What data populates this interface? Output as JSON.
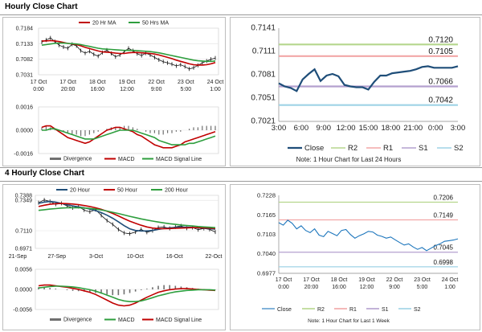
{
  "sections": {
    "hourly_title": "Hourly Close Chart",
    "four_hourly_title": "4 Hourly Close Chart"
  },
  "colors": {
    "close": "#1f4e79",
    "ma20": "#c00000",
    "ma50": "#2e9e3e",
    "macd": "#c00000",
    "signal": "#2e9e3e",
    "divergence": "#707070",
    "r2": "#b5d68d",
    "r1": "#f2a7a7",
    "s1": "#b4a0cf",
    "s2": "#9fd3e6",
    "right_close": "#1b75bc"
  },
  "chart_data": [
    {
      "id": "hourly_price",
      "type": "line",
      "legend": [
        "20 Hr MA",
        "50 Hrs MA"
      ],
      "y_ticks": [
        "0.7184",
        "0.7133",
        "0.7082",
        "0.7031"
      ],
      "ylim": [
        0.7031,
        0.7184
      ],
      "x_ticks": [
        [
          "17 Oct",
          "0:00"
        ],
        [
          "17 Oct",
          "20:00"
        ],
        [
          "18 Oct",
          "16:00"
        ],
        [
          "19 Oct",
          "12:00"
        ],
        [
          "22 Oct",
          "9:00"
        ],
        [
          "23 Oct",
          "5:00"
        ],
        [
          "24 Oct",
          "1:00"
        ]
      ],
      "series": [
        {
          "name": "Close",
          "values": [
            0.7138,
            0.7145,
            0.7152,
            0.714,
            0.7128,
            0.7122,
            0.7118,
            0.7131,
            0.7126,
            0.711,
            0.7102,
            0.7108,
            0.7098,
            0.7092,
            0.7104,
            0.7112,
            0.7101,
            0.709,
            0.7096,
            0.7106,
            0.7118,
            0.711,
            0.71,
            0.7094,
            0.7102,
            0.7096,
            0.7088,
            0.708,
            0.7074,
            0.707,
            0.7066,
            0.706,
            0.7064,
            0.7058,
            0.705,
            0.7054,
            0.7062,
            0.707,
            0.7076,
            0.7082,
            0.7086
          ]
        },
        {
          "name": "20 Hr MA",
          "values": [
            0.7142,
            0.7142,
            0.7143,
            0.7142,
            0.714,
            0.7137,
            0.7134,
            0.7132,
            0.713,
            0.7126,
            0.7121,
            0.7117,
            0.7113,
            0.7109,
            0.7106,
            0.7105,
            0.7104,
            0.7102,
            0.7101,
            0.7101,
            0.7103,
            0.7104,
            0.7104,
            0.7103,
            0.7102,
            0.7101,
            0.7099,
            0.7096,
            0.7092,
            0.7088,
            0.7084,
            0.7079,
            0.7075,
            0.7071,
            0.7067,
            0.7064,
            0.7063,
            0.7063,
            0.7064,
            0.7067,
            0.7071
          ]
        },
        {
          "name": "50 Hrs MA",
          "values": [
            0.7128,
            0.713,
            0.7132,
            0.7134,
            0.7135,
            0.7135,
            0.7134,
            0.7133,
            0.7132,
            0.713,
            0.7127,
            0.7124,
            0.7121,
            0.7118,
            0.7116,
            0.7115,
            0.7114,
            0.7113,
            0.7112,
            0.7111,
            0.7111,
            0.7111,
            0.711,
            0.7109,
            0.7108,
            0.7107,
            0.7105,
            0.7103,
            0.71,
            0.7097,
            0.7094,
            0.7091,
            0.7088,
            0.7085,
            0.7082,
            0.7079,
            0.7077,
            0.7076,
            0.7075,
            0.7075,
            0.7076
          ]
        }
      ]
    },
    {
      "id": "hourly_macd",
      "type": "line",
      "legend": [
        "Divergence",
        "MACD",
        "MACD Signal Line"
      ],
      "y_ticks": [
        "0.0016",
        "0.0000",
        "-0.0016"
      ],
      "ylim": [
        -0.0016,
        0.0016
      ],
      "series": [
        {
          "name": "Divergence",
          "values": [
            0.0002,
            0.0003,
            0.0002,
            0.0001,
            0.0,
            -0.0001,
            -0.0002,
            -0.0003,
            -0.0003,
            -0.0004,
            -0.0004,
            -0.0003,
            -0.0002,
            -0.0001,
            0.0,
            0.0001,
            0.0002,
            0.0002,
            0.0002,
            0.0003,
            0.0003,
            0.0002,
            0.0001,
            0.0,
            -0.0001,
            -0.0002,
            -0.0002,
            -0.0003,
            -0.0003,
            -0.0002,
            -0.0002,
            -0.0001,
            -0.0001,
            0.0,
            0.0001,
            0.0002,
            0.0002,
            0.0003,
            0.0003,
            0.0003,
            0.0003
          ]
        },
        {
          "name": "MACD",
          "values": [
            0.0002,
            0.0003,
            0.0003,
            0.0001,
            -0.0001,
            -0.0003,
            -0.0005,
            -0.0006,
            -0.0007,
            -0.0008,
            -0.0009,
            -0.0008,
            -0.0006,
            -0.0004,
            -0.0002,
            0.0,
            0.0001,
            0.0002,
            0.0002,
            0.0001,
            0.0,
            -0.0001,
            -0.0003,
            -0.0004,
            -0.0006,
            -0.0008,
            -0.001,
            -0.0011,
            -0.0012,
            -0.0012,
            -0.0012,
            -0.0011,
            -0.001,
            -0.0008,
            -0.0007,
            -0.0006,
            -0.0005,
            -0.0004,
            -0.0003,
            -0.0002,
            -0.0001
          ]
        },
        {
          "name": "MACD Signal Line",
          "values": [
            0.0,
            0.0,
            0.0001,
            0.0001,
            0.0,
            -0.0001,
            -0.0002,
            -0.0003,
            -0.0004,
            -0.0005,
            -0.0006,
            -0.0006,
            -0.0006,
            -0.0005,
            -0.0004,
            -0.0003,
            -0.0002,
            -0.0001,
            0.0,
            0.0,
            0.0,
            0.0,
            -0.0001,
            -0.0002,
            -0.0003,
            -0.0004,
            -0.0005,
            -0.0007,
            -0.0008,
            -0.0009,
            -0.001,
            -0.001,
            -0.001,
            -0.001,
            -0.0009,
            -0.0009,
            -0.0008,
            -0.0007,
            -0.0006,
            -0.0005,
            -0.0004
          ]
        }
      ]
    },
    {
      "id": "hourly_pivots",
      "type": "line",
      "y_ticks": [
        "0.7141",
        "0.7111",
        "0.7081",
        "0.7051",
        "0.7021"
      ],
      "ylim": [
        0.7021,
        0.7141
      ],
      "x_ticks": [
        "3:00",
        "6:00",
        "9:00",
        "12:00",
        "15:00",
        "18:00",
        "21:00",
        "0:00",
        "3:00"
      ],
      "levels": [
        {
          "name": "R2",
          "value": 0.712,
          "label": "0.7120"
        },
        {
          "name": "R1",
          "value": 0.7105,
          "label": "0.7105"
        },
        {
          "name": "S1",
          "value": 0.7066,
          "label": "0.7066"
        },
        {
          "name": "S2",
          "value": 0.7042,
          "label": "0.7042"
        }
      ],
      "series": [
        {
          "name": "Close",
          "values": [
            0.707,
            0.7066,
            0.7064,
            0.706,
            0.7075,
            0.7082,
            0.7088,
            0.7073,
            0.708,
            0.7082,
            0.7079,
            0.7068,
            0.7066,
            0.7065,
            0.7065,
            0.7062,
            0.7072,
            0.708,
            0.708,
            0.7083,
            0.7084,
            0.7085,
            0.7086,
            0.7088,
            0.7091,
            0.7092,
            0.709,
            0.709,
            0.709,
            0.709,
            0.7092
          ]
        }
      ],
      "legend": [
        "Close",
        "R2",
        "R1",
        "S1",
        "S2"
      ],
      "note": "Note: 1 Hour Chart for Last 24 Hours"
    },
    {
      "id": "four_hourly_price",
      "type": "line",
      "legend": [
        "20 Hour",
        "50 Hour",
        "200 Hour"
      ],
      "y_ticks": [
        "0.7388",
        "0.7349",
        "0.7110",
        "0.6971"
      ],
      "ylim": [
        0.6971,
        0.7388
      ],
      "x_ticks": [
        "21-Sep",
        "27-Sep",
        "3-Oct",
        "10-Oct",
        "16-Oct",
        "22-Oct"
      ],
      "series": [
        {
          "name": "Close",
          "values": [
            0.733,
            0.7352,
            0.734,
            0.7318,
            0.7325,
            0.7305,
            0.729,
            0.73,
            0.7272,
            0.7258,
            0.7276,
            0.723,
            0.719,
            0.716,
            0.712,
            0.7092,
            0.7086,
            0.71,
            0.712,
            0.7098,
            0.711,
            0.7135,
            0.714,
            0.7128,
            0.714,
            0.7148,
            0.713,
            0.7135,
            0.7118,
            0.7128,
            0.712,
            0.71
          ]
        },
        {
          "name": "20 Hour",
          "values": [
            0.7325,
            0.7335,
            0.734,
            0.7335,
            0.7325,
            0.7315,
            0.7305,
            0.7297,
            0.729,
            0.728,
            0.7268,
            0.7252,
            0.7232,
            0.7208,
            0.718,
            0.715,
            0.7125,
            0.7112,
            0.7108,
            0.7108,
            0.7112,
            0.712,
            0.7128,
            0.7133,
            0.7136,
            0.7138,
            0.7138,
            0.7136,
            0.7133,
            0.713,
            0.7126,
            0.7122
          ]
        },
        {
          "name": "50 Hour",
          "values": [
            0.73,
            0.731,
            0.7318,
            0.7322,
            0.7324,
            0.7323,
            0.732,
            0.7315,
            0.7308,
            0.73,
            0.729,
            0.7278,
            0.7263,
            0.7246,
            0.7226,
            0.7205,
            0.7185,
            0.7168,
            0.7153,
            0.714,
            0.7131,
            0.7127,
            0.7126,
            0.7127,
            0.7129,
            0.7131,
            0.7133,
            0.7134,
            0.7134,
            0.7133,
            0.7131,
            0.7128
          ]
        },
        {
          "name": "200 Hour",
          "values": [
            0.727,
            0.7275,
            0.728,
            0.7284,
            0.7288,
            0.729,
            0.7291,
            0.7291,
            0.7289,
            0.7285,
            0.728,
            0.7273,
            0.7265,
            0.7255,
            0.7245,
            0.7234,
            0.7223,
            0.7213,
            0.7203,
            0.7194,
            0.7186,
            0.7178,
            0.7171,
            0.7165,
            0.716,
            0.7155,
            0.7151,
            0.7147,
            0.7143,
            0.714,
            0.7137,
            0.7134
          ]
        }
      ]
    },
    {
      "id": "four_hourly_macd",
      "type": "line",
      "legend": [
        "Divergence",
        "MACD",
        "MACD Signal Line"
      ],
      "y_ticks": [
        "0.0056",
        "0.0000",
        "-0.0056"
      ],
      "ylim": [
        -0.0056,
        0.0056
      ],
      "series": [
        {
          "name": "Divergence",
          "values": [
            0.0006,
            0.0005,
            0.0004,
            0.0002,
            0.0,
            -0.0002,
            -0.0004,
            -0.0005,
            -0.0006,
            -0.0008,
            -0.001,
            -0.0012,
            -0.0014,
            -0.0016,
            -0.0016,
            -0.0014,
            -0.001,
            -0.0006,
            -0.0002,
            0.0002,
            0.0006,
            0.001,
            0.0012,
            0.0012,
            0.001,
            0.0008,
            0.0006,
            0.0004,
            0.0002,
            0.0001,
            0.0,
            -0.0001
          ]
        },
        {
          "name": "MACD",
          "values": [
            0.001,
            0.0012,
            0.0012,
            0.001,
            0.0008,
            0.0006,
            0.0003,
            0.0,
            -0.0004,
            -0.0008,
            -0.0014,
            -0.0022,
            -0.003,
            -0.0038,
            -0.0044,
            -0.0046,
            -0.0044,
            -0.0038,
            -0.003,
            -0.0022,
            -0.0015,
            -0.0008,
            -0.0004,
            -0.0001,
            0.0001,
            0.0002,
            0.0002,
            0.0001,
            0.0,
            -0.0001,
            -0.0002,
            -0.0003
          ]
        },
        {
          "name": "MACD Signal Line",
          "values": [
            0.0004,
            0.0006,
            0.0008,
            0.0009,
            0.0009,
            0.0008,
            0.0007,
            0.0005,
            0.0002,
            -0.0001,
            -0.0005,
            -0.001,
            -0.0016,
            -0.0022,
            -0.0028,
            -0.0032,
            -0.0034,
            -0.0034,
            -0.0032,
            -0.0028,
            -0.0023,
            -0.0018,
            -0.0014,
            -0.001,
            -0.0007,
            -0.0005,
            -0.0003,
            -0.0002,
            -0.0001,
            -0.0001,
            -0.0001,
            -0.0002
          ]
        }
      ]
    },
    {
      "id": "four_hourly_pivots",
      "type": "line",
      "y_ticks": [
        "0.7228",
        "0.7165",
        "0.7103",
        "0.7040",
        "0.6977"
      ],
      "ylim": [
        0.6977,
        0.7228
      ],
      "x_ticks": [
        [
          "17 Oct",
          "0:00"
        ],
        [
          "17 Oct",
          "20:00"
        ],
        [
          "18 Oct",
          "16:00"
        ],
        [
          "19 Oct",
          "12:00"
        ],
        [
          "22 Oct",
          "9:00"
        ],
        [
          "23 Oct",
          "5:00"
        ],
        [
          "24 Oct",
          "1:00"
        ]
      ],
      "levels": [
        {
          "name": "R2",
          "value": 0.7206,
          "label": "0.7206"
        },
        {
          "name": "R1",
          "value": 0.7149,
          "label": "0.7149"
        },
        {
          "name": "S1",
          "value": 0.7045,
          "label": "0.7045"
        },
        {
          "name": "S2",
          "value": 0.6998,
          "label": "0.6998"
        }
      ],
      "series": [
        {
          "name": "Close",
          "values": [
            0.714,
            0.7132,
            0.7148,
            0.7138,
            0.712,
            0.713,
            0.7115,
            0.7108,
            0.712,
            0.71,
            0.7095,
            0.7112,
            0.7105,
            0.7098,
            0.7115,
            0.7118,
            0.7102,
            0.709,
            0.7098,
            0.7104,
            0.7112,
            0.711,
            0.71,
            0.7096,
            0.709,
            0.7094,
            0.7085,
            0.7076,
            0.7068,
            0.7072,
            0.7062,
            0.7054,
            0.706,
            0.705,
            0.7058,
            0.7066,
            0.7072,
            0.708,
            0.7082,
            0.7084,
            0.7088
          ]
        }
      ],
      "legend": [
        "Close",
        "R2",
        "R1",
        "S1",
        "S2"
      ],
      "note": "Note: 1 Hour Chart for Last 1 Week"
    }
  ]
}
